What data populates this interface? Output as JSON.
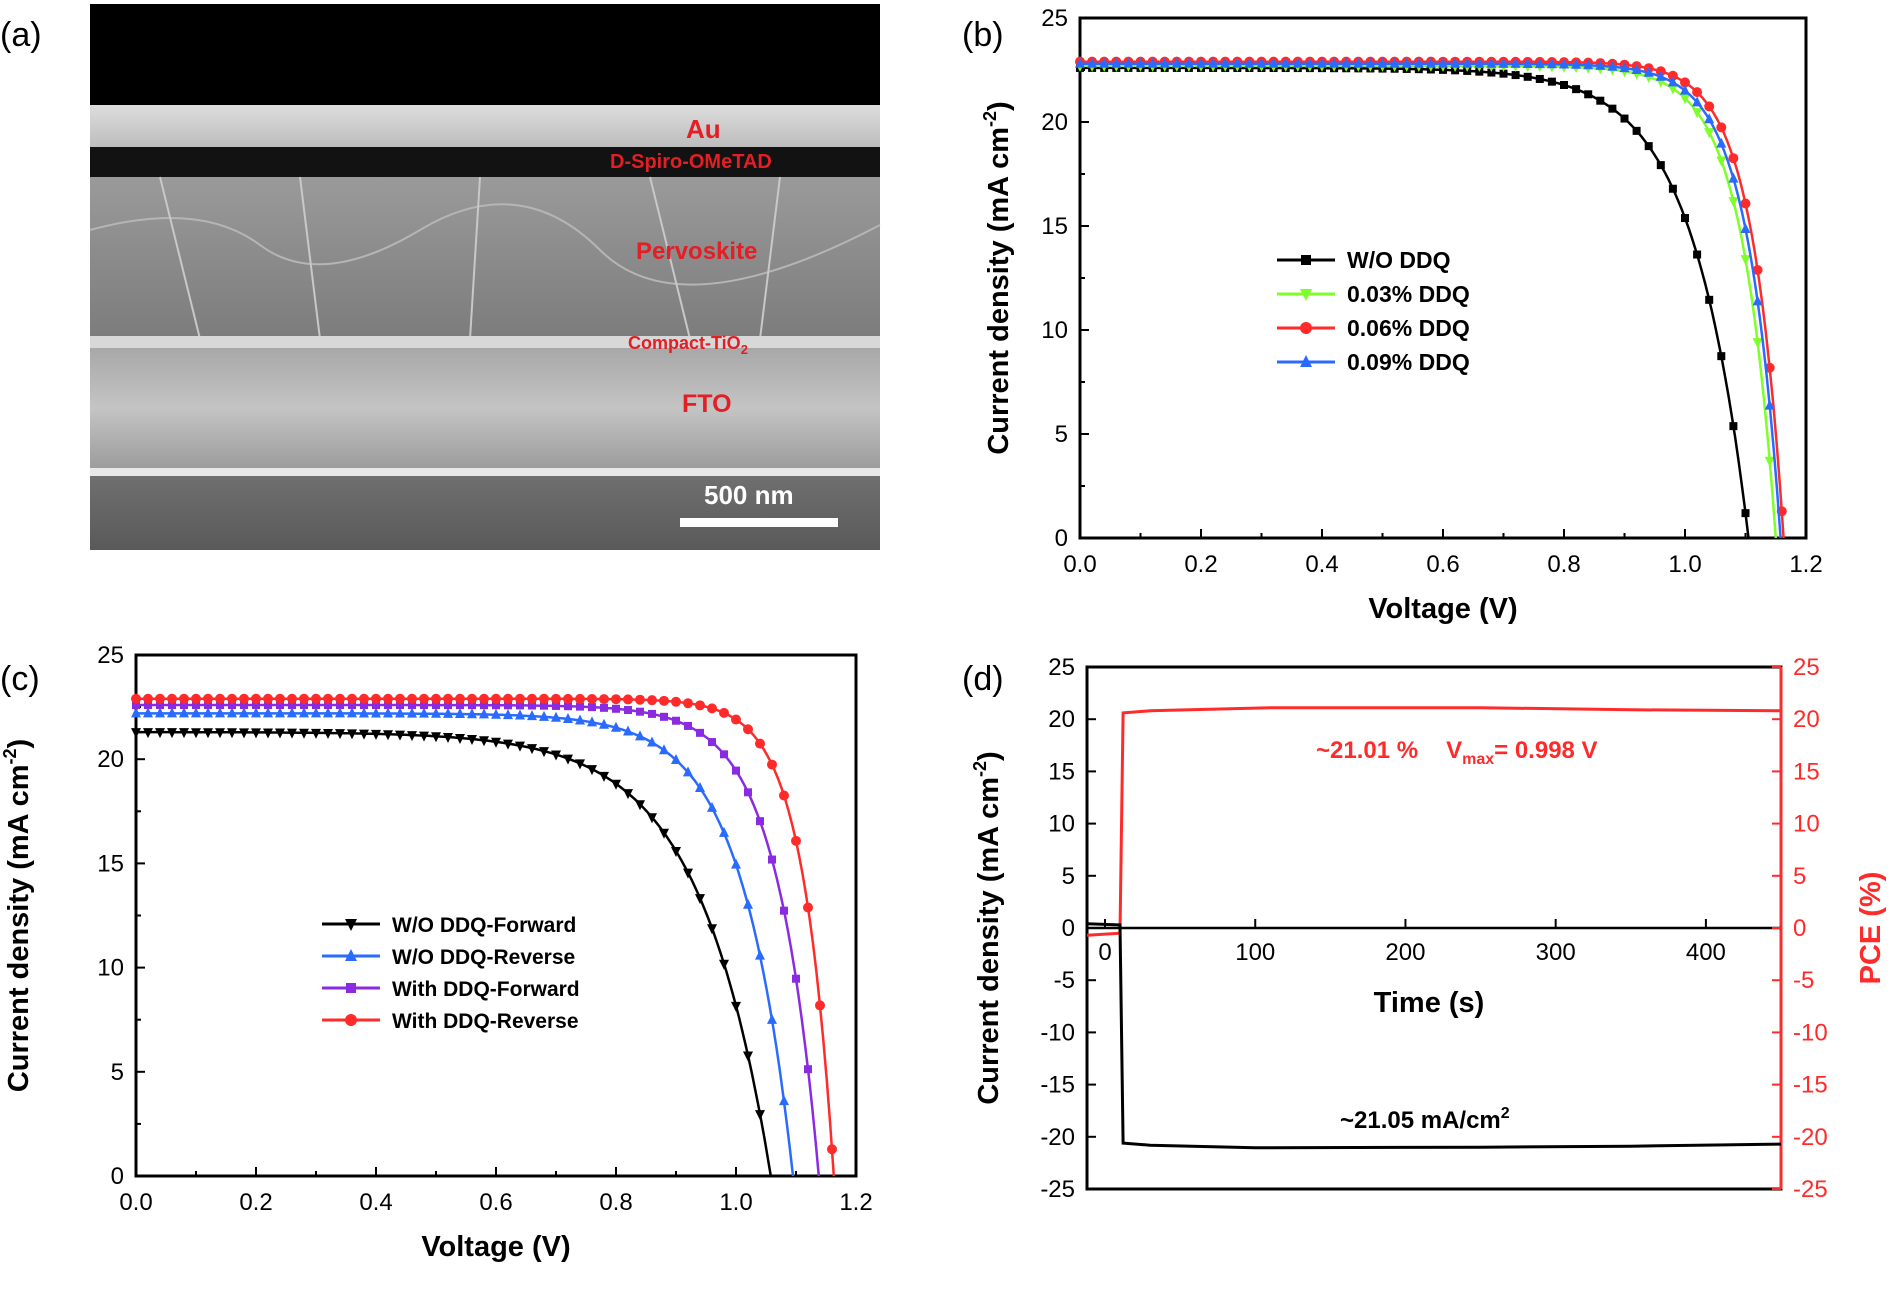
{
  "panels": {
    "a": {
      "label": "(a)",
      "layers": [
        "Au",
        "D-Spiro-OMeTAD",
        "Pervoskite",
        "Compact-TiO",
        "FTO"
      ],
      "layer_subscript": "2",
      "scale_bar": "500 nm"
    },
    "b": {
      "label": "(b)"
    },
    "c": {
      "label": "(c)"
    },
    "d": {
      "label": "(d)"
    }
  },
  "chart_data": [
    {
      "panel": "b",
      "type": "line",
      "xlabel": "Voltage (V)",
      "ylabel": "Current density (mA cm",
      "ylabel_sup": "-2",
      "ylabel_end": ")",
      "xlim": [
        0,
        1.2
      ],
      "ylim": [
        0,
        25
      ],
      "xticks": [
        "0.0",
        "0.2",
        "0.4",
        "0.6",
        "0.8",
        "1.0",
        "1.2"
      ],
      "yticks": [
        "0",
        "5",
        "10",
        "15",
        "20",
        "25"
      ],
      "legend_position": "center",
      "series": [
        {
          "name": "W/O DDQ",
          "color": "#000000",
          "marker": "square",
          "jsc": 22.6,
          "voc": 1.105,
          "n": 0.092
        },
        {
          "name": "0.03% DDQ",
          "color": "#7fff2a",
          "marker": "triangle-down",
          "jsc": 22.7,
          "voc": 1.15,
          "n": 0.056
        },
        {
          "name": "0.06% DDQ",
          "color": "#ff2b2b",
          "marker": "circle",
          "jsc": 22.9,
          "voc": 1.163,
          "n": 0.052
        },
        {
          "name": "0.09% DDQ",
          "color": "#2a6bff",
          "marker": "triangle-up",
          "jsc": 22.8,
          "voc": 1.158,
          "n": 0.055
        }
      ]
    },
    {
      "panel": "c",
      "type": "line",
      "xlabel": "Voltage (V)",
      "ylabel": "Current density (mA cm",
      "ylabel_sup": "-2",
      "ylabel_end": ")",
      "xlim": [
        0,
        1.2
      ],
      "ylim": [
        0,
        25
      ],
      "xticks": [
        "0.0",
        "0.2",
        "0.4",
        "0.6",
        "0.8",
        "1.0",
        "1.2"
      ],
      "yticks": [
        "0",
        "5",
        "10",
        "15",
        "20",
        "25"
      ],
      "legend_position": "center-left",
      "series": [
        {
          "name": "W/O DDQ-Forward",
          "color": "#000000",
          "marker": "triangle-down",
          "jsc": 21.3,
          "voc": 1.058,
          "n": 0.12
        },
        {
          "name": "W/O DDQ-Reverse",
          "color": "#2a6bff",
          "marker": "triangle-up",
          "jsc": 22.2,
          "voc": 1.095,
          "n": 0.085
        },
        {
          "name": "With DDQ-Forward",
          "color": "#8a2be2",
          "marker": "square",
          "jsc": 22.6,
          "voc": 1.138,
          "n": 0.07
        },
        {
          "name": "With DDQ-Reverse",
          "color": "#ff2b2b",
          "marker": "circle",
          "jsc": 22.9,
          "voc": 1.163,
          "n": 0.052
        }
      ]
    },
    {
      "panel": "d",
      "type": "line",
      "xlabel": "Time (s)",
      "ylabel": "Current density (mA cm",
      "ylabel_sup": "-2",
      "ylabel_end": ")",
      "y2label": "PCE (%)",
      "xlim": [
        -12,
        450
      ],
      "ylim": [
        -25,
        25
      ],
      "y2lim": [
        -25,
        25
      ],
      "xticks": [
        "0",
        "100",
        "200",
        "300",
        "400"
      ],
      "yticks": [
        "-25",
        "-20",
        "-15",
        "-10",
        "-5",
        "0",
        "5",
        "10",
        "15",
        "20",
        "25"
      ],
      "y2ticks": [
        "-25",
        "-20",
        "-15",
        "-10",
        "-5",
        "0",
        "5",
        "10",
        "15",
        "20",
        "25"
      ],
      "series": [
        {
          "name": "PCE",
          "color": "#ff2b2b",
          "x": [
            -12,
            10,
            12,
            30,
            110,
            250,
            350,
            450
          ],
          "y": [
            -0.7,
            -0.5,
            20.6,
            20.8,
            21.1,
            21.1,
            20.9,
            20.8
          ]
        },
        {
          "name": "Current density",
          "color": "#000000",
          "x": [
            -12,
            10,
            12,
            30,
            100,
            250,
            350,
            450
          ],
          "y": [
            0.4,
            0.3,
            -20.6,
            -20.8,
            -21.05,
            -21.0,
            -20.9,
            -20.7
          ]
        }
      ],
      "annotations": {
        "pce": "~21.01 %",
        "vmax_label": "V",
        "vmax_sub": "max",
        "vmax_value": "= 0.998 V",
        "current": "~21.05 mA/cm",
        "current_sup": "2"
      }
    }
  ]
}
